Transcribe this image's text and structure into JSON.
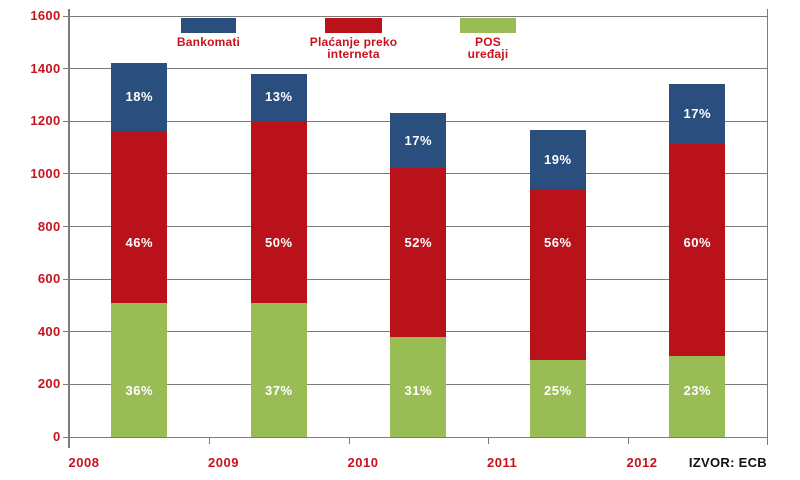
{
  "source_note": "IZVOR: ECB",
  "colors": {
    "bankomati": "#2A4E7E",
    "internet": "#B9121B",
    "pos": "#9ABC55",
    "axis_label": "#C8121E",
    "legend_label": "#C8121E",
    "grid": "#7B7B7B",
    "source_text": "#111111",
    "background": "#FFFFFF",
    "segment_label": "#FFFFFF"
  },
  "chart_data": {
    "type": "bar",
    "stacked": true,
    "title": "",
    "xlabel": "",
    "ylabel": "",
    "categories": [
      "2008",
      "2009",
      "2010",
      "2011",
      "2012"
    ],
    "series": [
      {
        "name": "POS uređaji",
        "color_key": "pos",
        "values": [
          511,
          511,
          381,
          291,
          308
        ],
        "labels": [
          "36%",
          "37%",
          "31%",
          "25%",
          "23%"
        ]
      },
      {
        "name": "Plaćanje preko interneta",
        "color_key": "internet",
        "values": [
          653,
          690,
          640,
          652,
          804
        ],
        "labels": [
          "46%",
          "50%",
          "52%",
          "56%",
          "60%"
        ]
      },
      {
        "name": "Bankomati",
        "color_key": "bankomati",
        "values": [
          256,
          179,
          209,
          222,
          228
        ],
        "labels": [
          "18%",
          "13%",
          "17%",
          "19%",
          "17%"
        ]
      }
    ],
    "totals": [
      1420,
      1380,
      1230,
      1165,
      1340
    ],
    "ylim": [
      0,
      1600
    ],
    "yticks": [
      0,
      200,
      400,
      600,
      800,
      1000,
      1200,
      1400,
      1600
    ],
    "grid": true,
    "legend_position": "top",
    "legend": [
      {
        "lines": [
          "Bankomati"
        ],
        "color_key": "bankomati"
      },
      {
        "lines": [
          "Plaćanje preko",
          "interneta"
        ],
        "color_key": "internet"
      },
      {
        "lines": [
          "POS",
          "uređaji"
        ],
        "color_key": "pos"
      }
    ]
  }
}
